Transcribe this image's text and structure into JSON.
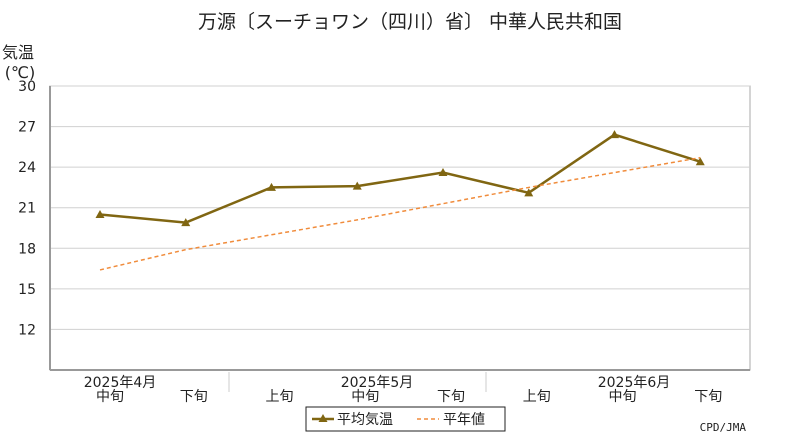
{
  "chart_data": {
    "type": "line",
    "title": "万源〔スーチョワン（四川）省〕 中華人民共和国",
    "ylabel": "気温",
    "yunit": "(℃)",
    "ylim": [
      9,
      30
    ],
    "yticks": [
      12,
      15,
      18,
      21,
      24,
      27,
      30
    ],
    "grid": true,
    "categories": [
      "中旬",
      "下旬",
      "上旬",
      "中旬",
      "下旬",
      "上旬",
      "中旬",
      "下旬"
    ],
    "months": [
      {
        "label": "2025年4月",
        "center_index": 0.5
      },
      {
        "label": "2025年5月",
        "center_index": 3
      },
      {
        "label": "2025年6月",
        "center_index": 6
      }
    ],
    "series": [
      {
        "name": "平均気温",
        "values": [
          20.5,
          19.9,
          22.5,
          22.6,
          23.6,
          22.1,
          26.4,
          24.4
        ],
        "color": "#806612",
        "style": "solid"
      },
      {
        "name": "平年値",
        "values": [
          16.4,
          17.9,
          19.0,
          20.1,
          21.3,
          22.5,
          23.6,
          24.7
        ],
        "color": "#f08c3c",
        "style": "dashed"
      }
    ],
    "legend_position": "bottom-center",
    "credit": "CPD/JMA"
  }
}
